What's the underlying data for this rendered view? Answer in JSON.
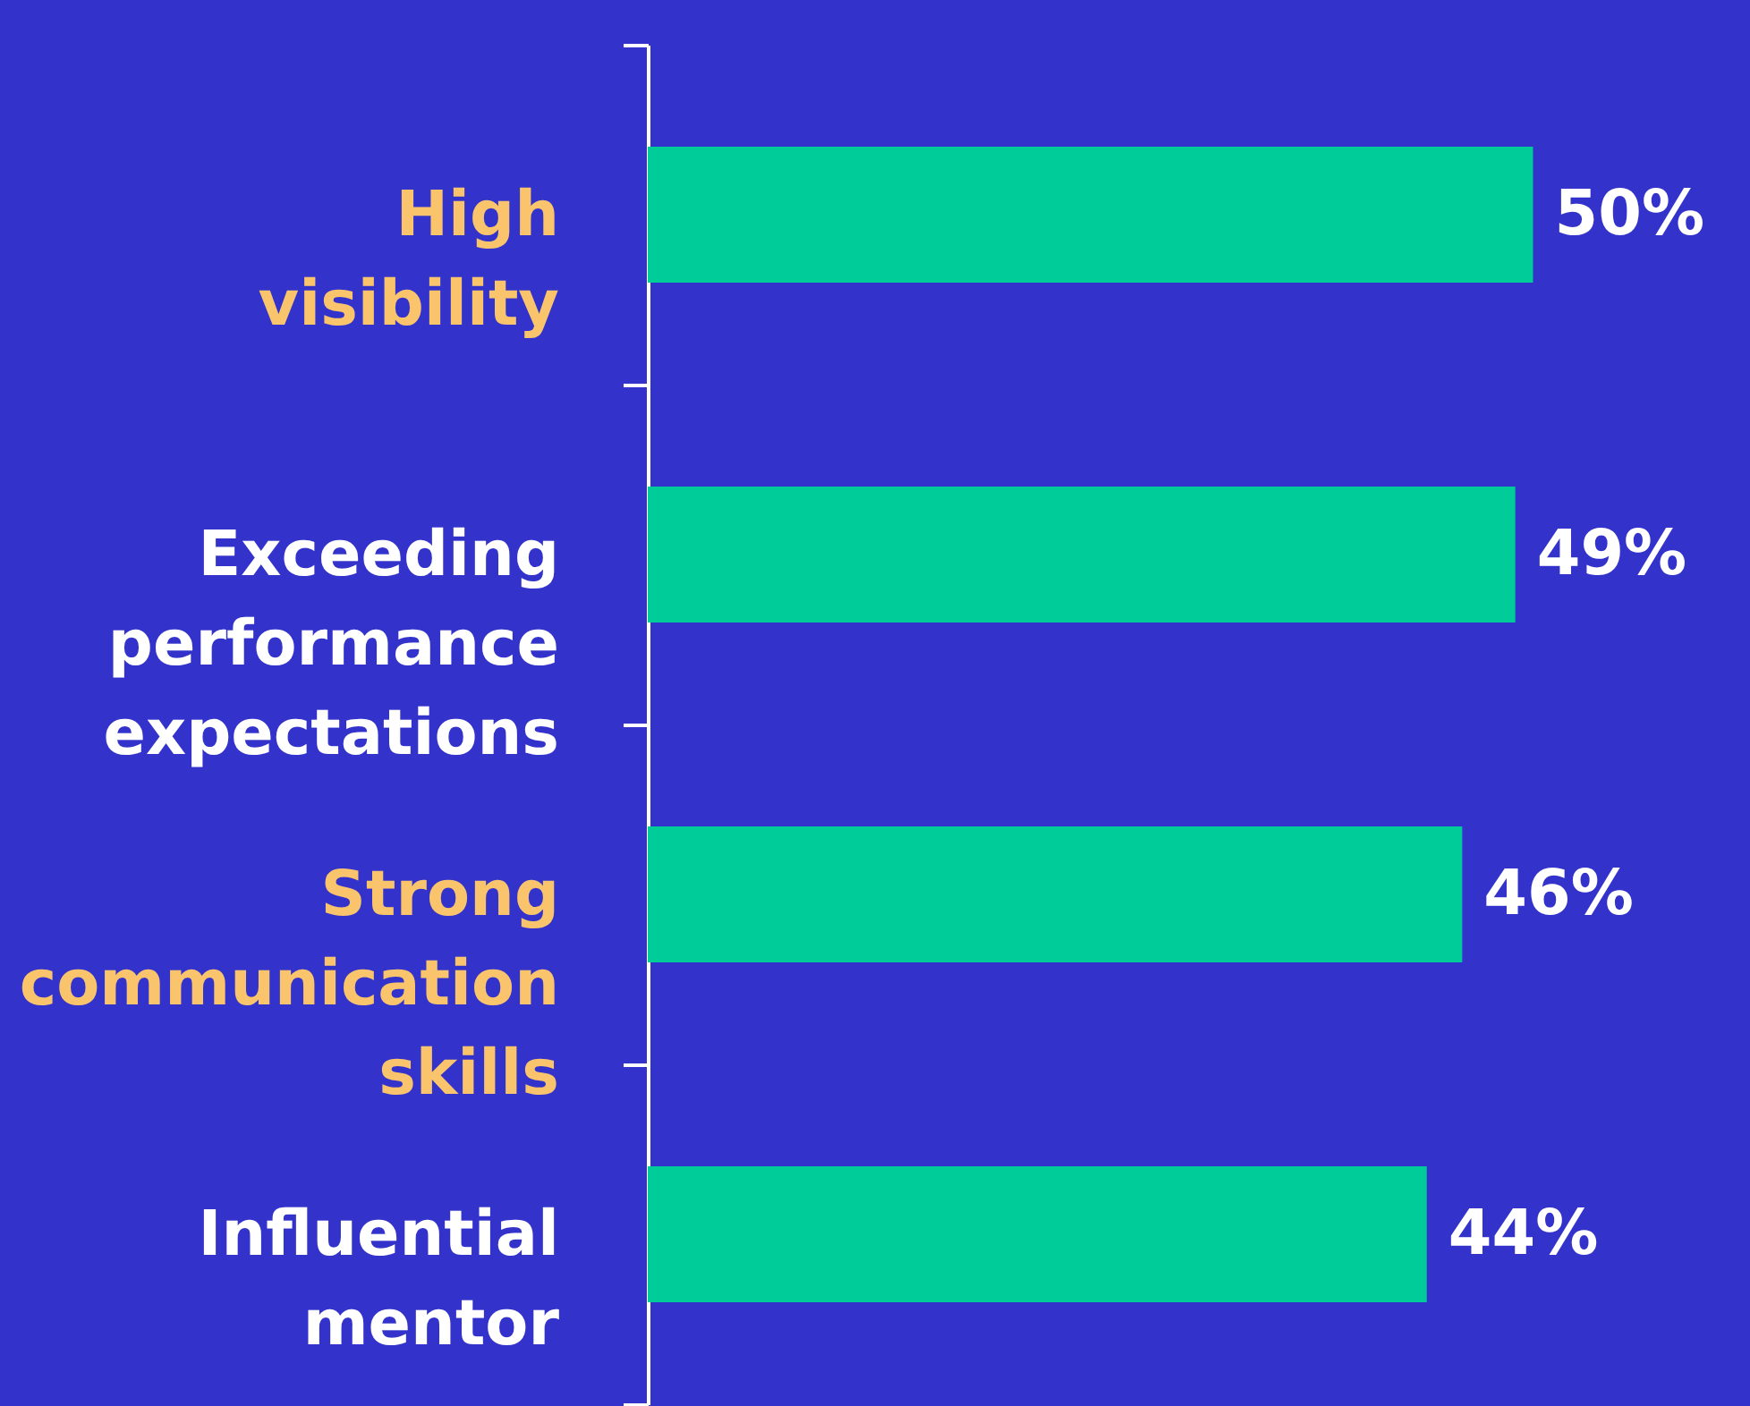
{
  "chart_data": {
    "type": "bar",
    "orientation": "horizontal",
    "categories": [
      "High visibility",
      "Exceeding performance expectations",
      "Strong communication skills",
      "Influential mentor"
    ],
    "values": [
      50,
      49,
      46,
      44
    ],
    "value_labels": [
      "50%",
      "49%",
      "46%",
      "44%"
    ],
    "color": "#00cc99"
  }
}
